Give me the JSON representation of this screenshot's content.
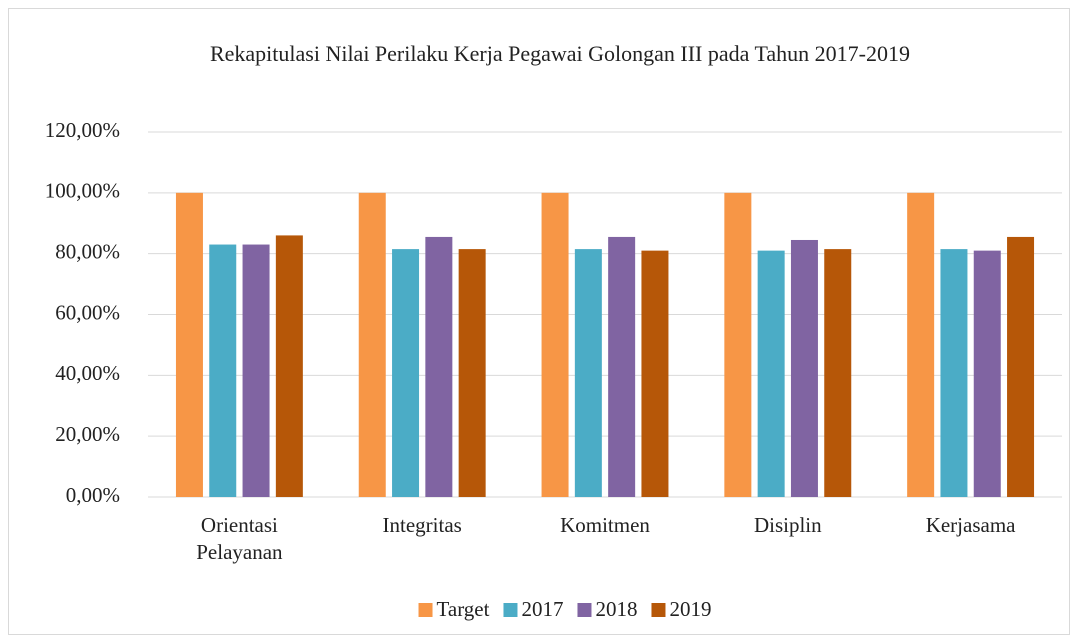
{
  "chart_data": {
    "type": "bar",
    "title": "Rekapitulasi Nilai Perilaku Kerja Pegawai Golongan III pada Tahun 2017-2019",
    "categories": [
      "Orientasi Pelayanan",
      "Integritas",
      "Komitmen",
      "Disiplin",
      "Kerjasama"
    ],
    "series": [
      {
        "name": "Target",
        "color": "#f79646",
        "values": [
          100,
          100,
          100,
          100,
          100
        ]
      },
      {
        "name": "2017",
        "color": "#4bacc6",
        "values": [
          83,
          81.5,
          81.5,
          81,
          81.5
        ]
      },
      {
        "name": "2018",
        "color": "#8064a2",
        "values": [
          83,
          85.5,
          85.5,
          84.5,
          81
        ]
      },
      {
        "name": "2019",
        "color": "#b65708",
        "values": [
          86,
          81.5,
          81,
          81.5,
          85.5
        ]
      }
    ],
    "ylim": [
      0,
      120
    ],
    "yticks": [
      {
        "value": 0,
        "label": "0,00%"
      },
      {
        "value": 20,
        "label": "20,00%"
      },
      {
        "value": 40,
        "label": "40,00%"
      },
      {
        "value": 60,
        "label": "60,00%"
      },
      {
        "value": 80,
        "label": "80,00%"
      },
      {
        "value": 100,
        "label": "100,00%"
      },
      {
        "value": 120,
        "label": "120,00%"
      }
    ],
    "grid": true,
    "legend": "bottom"
  }
}
